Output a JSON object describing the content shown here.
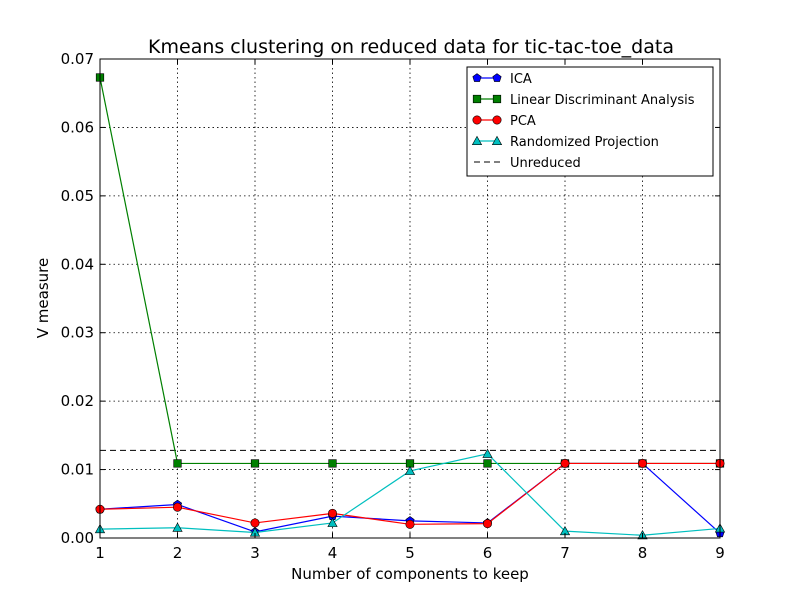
{
  "chart_data": {
    "type": "line",
    "title": "Kmeans clustering on reduced data for tic-tac-toe_data",
    "xlabel": "Number of components to keep",
    "ylabel": "V measure",
    "xlim": [
      1,
      9
    ],
    "ylim": [
      0,
      0.07
    ],
    "xticks": [
      1,
      2,
      3,
      4,
      5,
      6,
      7,
      8,
      9
    ],
    "yticks": [
      0.0,
      0.01,
      0.02,
      0.03,
      0.04,
      0.05,
      0.06,
      0.07
    ],
    "ytick_labels": [
      "0.00",
      "0.01",
      "0.02",
      "0.03",
      "0.04",
      "0.05",
      "0.06",
      "0.07"
    ],
    "grid": true,
    "legend_position": "top-right",
    "x": [
      1,
      2,
      3,
      4,
      5,
      6,
      7,
      8,
      9
    ],
    "series": [
      {
        "name": "ICA",
        "color": "#0000ff",
        "marker": "pentagon",
        "values": [
          0.0042,
          0.0049,
          0.0009,
          0.0032,
          0.0025,
          0.0022,
          0.0109,
          0.0109,
          0.0007
        ]
      },
      {
        "name": "Linear Discriminant Analysis",
        "color": "#008000",
        "marker": "square",
        "values": [
          0.0673,
          0.0109,
          0.0109,
          0.0109,
          0.0109,
          0.0109,
          0.0109,
          0.0109,
          0.0109
        ]
      },
      {
        "name": "PCA",
        "color": "#ff0000",
        "marker": "circle",
        "values": [
          0.0042,
          0.0045,
          0.0022,
          0.0036,
          0.002,
          0.0021,
          0.0109,
          0.0109,
          0.0109
        ]
      },
      {
        "name": "Randomized Projection",
        "color": "#00bfbf",
        "marker": "triangle",
        "values": [
          0.0013,
          0.0015,
          0.0008,
          0.0022,
          0.0098,
          0.0123,
          0.001,
          0.0004,
          0.0014
        ]
      }
    ],
    "reference_lines": [
      {
        "name": "Unreduced",
        "color": "#000000",
        "style": "dashed",
        "value": 0.0128
      }
    ]
  }
}
